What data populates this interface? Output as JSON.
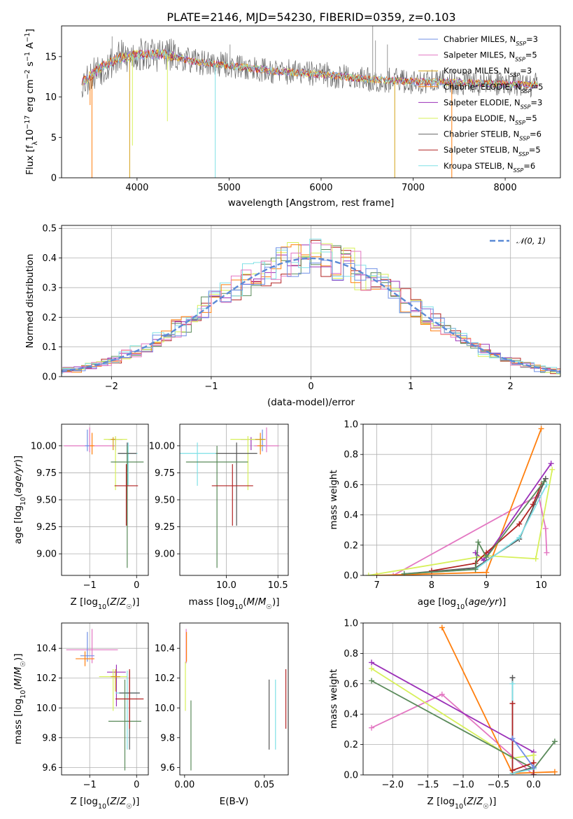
{
  "figure": {
    "title": "PLATE=2146, MJD=54230, FIBERID=0359, z=0.103"
  },
  "colors": {
    "palette": [
      "#6f8fe6",
      "#e377c2",
      "#d4a017",
      "#ff7f0e",
      "#9b30b8",
      "#d7f05a",
      "#555555",
      "#b22222",
      "#7fe0e6",
      "#5a8a5a"
    ]
  },
  "chart_data": [
    {
      "id": "spectrum",
      "type": "line",
      "xlabel": "wavelength [Angstrom, rest frame]",
      "ylabel": "Flux [f_λ 10^-17 erg cm^-2 s^-1 A^-1]",
      "xlim": [
        3180,
        8600
      ],
      "ylim": [
        0,
        18.8
      ],
      "xticks": [
        4000,
        5000,
        6000,
        7000,
        8000
      ],
      "yticks": [
        0,
        5,
        10,
        15
      ],
      "grid": false,
      "legend_position": "top-right",
      "series": [
        {
          "name": "Chabrier MILES, N_SSP=3"
        },
        {
          "name": "Salpeter MILES, N_SSP=5"
        },
        {
          "name": "Kroupa MILES, N_SSP=3"
        },
        {
          "name": "Chabrier ELODIE, N_SSP=5"
        },
        {
          "name": "Salpeter ELODIE, N_SSP=3"
        },
        {
          "name": "Kroupa ELODIE, N_SSP=5"
        },
        {
          "name": "Chabrier STELIB, N_SSP=6"
        },
        {
          "name": "Salpeter STELIB, N_SSP=5"
        },
        {
          "name": "Kroupa STELIB, N_SSP=6"
        }
      ],
      "profile": {
        "x": [
          3400,
          3600,
          3800,
          4000,
          4300,
          4600,
          5000,
          5500,
          6000,
          6500,
          7000,
          7500,
          8000,
          8350
        ],
        "y": [
          11.8,
          13.6,
          14.8,
          15.2,
          15.3,
          14.4,
          13.9,
          13.2,
          12.8,
          12.2,
          11.9,
          11.8,
          11.6,
          11.5
        ]
      }
    },
    {
      "id": "residuals",
      "type": "histogram",
      "xlabel": "(data-model)/error",
      "ylabel": "Normed distribution",
      "xlim": [
        -2.5,
        2.5
      ],
      "ylim": [
        0,
        0.51
      ],
      "xticks": [
        -2,
        -1,
        0,
        1,
        2
      ],
      "yticks": [
        0.0,
        0.1,
        0.2,
        0.3,
        0.4,
        0.5
      ],
      "grid": true,
      "legend": [
        {
          "name": "𝒩(0, 1)",
          "style": "dashed"
        }
      ]
    },
    {
      "id": "age_vs_Z",
      "type": "errorbar",
      "xlabel": "Z [log10(Z/Z☉)]",
      "ylabel": "age [log10(age/yr)]",
      "xlim": [
        -1.6,
        0.25
      ],
      "ylim": [
        8.8,
        10.2
      ],
      "xticks": [
        -1,
        0
      ],
      "yticks": [
        9.0,
        9.25,
        9.5,
        9.75,
        10.0
      ],
      "grid": true,
      "points": [
        {
          "x": -1.0,
          "y": 10.0,
          "xerr": 0.55,
          "yerr": [
            0.06,
            0.17
          ],
          "c": 1
        },
        {
          "x": -1.05,
          "y": 10.0,
          "xerr": 0.05,
          "yerr": [
            0.05,
            0.15
          ],
          "c": 0
        },
        {
          "x": -0.95,
          "y": 10.0,
          "xerr": 0.05,
          "yerr": [
            0.08,
            0.12
          ],
          "c": 3
        },
        {
          "x": -0.45,
          "y": 10.06,
          "xerr": 0.15,
          "yerr": [
            0.1,
            0.02
          ],
          "c": 4
        },
        {
          "x": -0.45,
          "y": 10.06,
          "xerr": 0.25,
          "yerr": [
            0.47,
            0.03
          ],
          "c": 5
        },
        {
          "x": -0.5,
          "y": 10.06,
          "xerr": 0.05,
          "yerr": [
            0.1,
            0.02
          ],
          "c": 2
        },
        {
          "x": -0.18,
          "y": 9.93,
          "xerr": 0.2,
          "yerr": [
            0.3,
            0.1
          ],
          "c": 8
        },
        {
          "x": -0.2,
          "y": 9.93,
          "xerr": 0.2,
          "yerr": [
            0.67,
            0.1
          ],
          "c": 6
        },
        {
          "x": -0.2,
          "y": 9.85,
          "xerr": 0.35,
          "yerr": [
            0.98,
            0.15
          ],
          "c": 9
        },
        {
          "x": -0.22,
          "y": 9.63,
          "xerr": 0.25,
          "yerr": [
            0.37,
            0.2
          ],
          "c": 7
        }
      ]
    },
    {
      "id": "age_vs_mass",
      "type": "errorbar",
      "xlabel": "mass [log10(M/M☉)]",
      "ylabel": "",
      "xlim": [
        9.55,
        10.6
      ],
      "ylim": [
        8.8,
        10.2
      ],
      "xticks": [
        10.0,
        10.5
      ],
      "yticks": [
        9.0,
        9.25,
        9.5,
        9.75,
        10.0
      ],
      "grid": true,
      "points": [
        {
          "x": 10.39,
          "y": 10.0,
          "xerr": 0.12,
          "yerr": [
            0.06,
            0.17
          ],
          "c": 1
        },
        {
          "x": 10.35,
          "y": 10.0,
          "xerr": 0.03,
          "yerr": [
            0.05,
            0.15
          ],
          "c": 0
        },
        {
          "x": 10.33,
          "y": 10.0,
          "xerr": 0.03,
          "yerr": [
            0.08,
            0.12
          ],
          "c": 3
        },
        {
          "x": 10.24,
          "y": 10.06,
          "xerr": 0.1,
          "yerr": [
            0.1,
            0.02
          ],
          "c": 4
        },
        {
          "x": 10.21,
          "y": 10.06,
          "xerr": 0.17,
          "yerr": [
            0.47,
            0.03
          ],
          "c": 5
        },
        {
          "x": 10.33,
          "y": 10.06,
          "xerr": 0.05,
          "yerr": [
            0.1,
            0.02
          ],
          "c": 2
        },
        {
          "x": 9.72,
          "y": 9.93,
          "xerr": 0.2,
          "yerr": [
            0.3,
            0.1
          ],
          "c": 8
        },
        {
          "x": 10.1,
          "y": 9.93,
          "xerr": 0.2,
          "yerr": [
            0.67,
            0.1
          ],
          "c": 6
        },
        {
          "x": 9.91,
          "y": 9.85,
          "xerr": 0.3,
          "yerr": [
            0.98,
            0.15
          ],
          "c": 9
        },
        {
          "x": 10.06,
          "y": 9.63,
          "xerr": 0.2,
          "yerr": [
            0.37,
            0.2
          ],
          "c": 7
        }
      ]
    },
    {
      "id": "weight_vs_age",
      "type": "line",
      "xlabel": "age [log10(age/yr)]",
      "ylabel": "mass weight",
      "xlim": [
        6.75,
        10.35
      ],
      "ylim": [
        0,
        1.0
      ],
      "xticks": [
        7,
        8,
        9,
        10
      ],
      "yticks": [
        0.0,
        0.2,
        0.4,
        0.6,
        0.8,
        1.0
      ],
      "grid": true,
      "series": [
        {
          "c": 1,
          "x": [
            7.3,
            9.95,
            10.08,
            10.1
          ],
          "y": [
            0.0,
            0.53,
            0.31,
            0.15
          ]
        },
        {
          "c": 3,
          "x": [
            7.0,
            9.0,
            10.0
          ],
          "y": [
            0.0,
            0.02,
            0.97
          ]
        },
        {
          "c": 4,
          "x": [
            8.8,
            8.95,
            10.18
          ],
          "y": [
            0.15,
            0.1,
            0.74
          ]
        },
        {
          "c": 5,
          "x": [
            6.85,
            9.0,
            9.9,
            10.2
          ],
          "y": [
            0.0,
            0.13,
            0.11,
            0.7
          ]
        },
        {
          "c": 7,
          "x": [
            8.0,
            8.8,
            9.0,
            9.6,
            9.85,
            10.0
          ],
          "y": [
            0.03,
            0.08,
            0.15,
            0.34,
            0.47,
            0.6
          ]
        },
        {
          "c": 6,
          "x": [
            7.5,
            8.8,
            9.6,
            10.08
          ],
          "y": [
            0.01,
            0.05,
            0.24,
            0.64
          ]
        },
        {
          "c": 8,
          "x": [
            7.5,
            8.8,
            9.6,
            10.1
          ],
          "y": [
            0.01,
            0.04,
            0.25,
            0.6
          ]
        },
        {
          "c": 9,
          "x": [
            7.5,
            8.8,
            8.85,
            9.0,
            10.05
          ],
          "y": [
            0.01,
            0.04,
            0.22,
            0.12,
            0.62
          ]
        }
      ]
    },
    {
      "id": "mass_vs_Z",
      "type": "errorbar",
      "xlabel": "Z [log10(Z/Z☉)]",
      "ylabel": "mass [log10(M/M☉)]",
      "xlim": [
        -1.6,
        0.25
      ],
      "ylim": [
        9.55,
        10.57
      ],
      "xticks": [
        -1,
        0
      ],
      "yticks": [
        9.6,
        9.8,
        10.0,
        10.2,
        10.4
      ],
      "grid": true,
      "points": [
        {
          "x": -0.95,
          "y": 10.39,
          "xerr": 0.55,
          "yerr": [
            0.09,
            0.14
          ],
          "c": 1
        },
        {
          "x": -1.05,
          "y": 10.35,
          "xerr": 0.15,
          "yerr": [
            0.04,
            0.16
          ],
          "c": 0
        },
        {
          "x": -1.1,
          "y": 10.33,
          "xerr": 0.2,
          "yerr": [
            0.05,
            0.05
          ],
          "c": 3
        },
        {
          "x": -0.43,
          "y": 10.24,
          "xerr": 0.2,
          "yerr": [
            0.23,
            0.05
          ],
          "c": 4
        },
        {
          "x": -0.5,
          "y": 10.21,
          "xerr": 0.3,
          "yerr": [
            0.23,
            0.05
          ],
          "c": 5
        },
        {
          "x": -0.45,
          "y": 10.21,
          "xerr": 0.1,
          "yerr": [
            0.1,
            0.05
          ],
          "c": 2
        },
        {
          "x": -0.2,
          "y": 10.1,
          "xerr": 0.25,
          "yerr": [
            0.38,
            0.15
          ],
          "c": 8
        },
        {
          "x": -0.15,
          "y": 10.1,
          "xerr": 0.22,
          "yerr": [
            0.38,
            0.15
          ],
          "c": 6
        },
        {
          "x": -0.25,
          "y": 9.91,
          "xerr": 0.35,
          "yerr": [
            0.33,
            0.28
          ],
          "c": 9
        },
        {
          "x": -0.15,
          "y": 10.06,
          "xerr": 0.3,
          "yerr": [
            0.2,
            0.2
          ],
          "c": 7
        }
      ]
    },
    {
      "id": "mass_vs_ebv",
      "type": "errorbar",
      "xlabel": "E(B-V)",
      "ylabel": "",
      "xlim": [
        -0.003,
        0.065
      ],
      "ylim": [
        9.55,
        10.57
      ],
      "xticks": [
        0.0,
        0.05
      ],
      "yticks": [
        9.6,
        9.8,
        10.0,
        10.2,
        10.4
      ],
      "grid": false,
      "points": [
        {
          "x": 0.001,
          "y": 10.39,
          "xerr": 0.0,
          "yerr": [
            0.09,
            0.14
          ],
          "c": 1
        },
        {
          "x": 0.0012,
          "y": 10.35,
          "xerr": 0.0,
          "yerr": [
            0.04,
            0.16
          ],
          "c": 3
        },
        {
          "x": 0.0005,
          "y": 10.21,
          "xerr": 0.0,
          "yerr": [
            0.23,
            0.1
          ],
          "c": 5
        },
        {
          "x": 0.004,
          "y": 9.95,
          "xerr": 0.0,
          "yerr": [
            0.37,
            0.1
          ],
          "c": 9
        },
        {
          "x": 0.053,
          "y": 9.95,
          "xerr": 0.0,
          "yerr": [
            0.23,
            0.24
          ],
          "c": 6
        },
        {
          "x": 0.057,
          "y": 9.93,
          "xerr": 0.0,
          "yerr": [
            0.21,
            0.26
          ],
          "c": 8
        },
        {
          "x": 0.0635,
          "y": 10.06,
          "xerr": 0.0,
          "yerr": [
            0.2,
            0.2
          ],
          "c": 7
        }
      ]
    },
    {
      "id": "weight_vs_Z",
      "type": "line",
      "xlabel": "Z [log10(Z/Z☉)]",
      "ylabel": "mass weight",
      "xlim": [
        -2.42,
        0.38
      ],
      "ylim": [
        0,
        1.0
      ],
      "xticks": [
        -2.0,
        -1.5,
        -1.0,
        -0.5,
        0.0
      ],
      "yticks": [
        0.0,
        0.2,
        0.4,
        0.6,
        0.8,
        1.0
      ],
      "grid": true,
      "series": [
        {
          "c": 1,
          "x": [
            -2.3,
            -1.3,
            0.0
          ],
          "y": [
            0.31,
            0.53,
            0.0
          ]
        },
        {
          "c": 3,
          "x": [
            -1.3,
            -0.3,
            0.3
          ],
          "y": [
            0.97,
            0.01,
            0.02
          ]
        },
        {
          "c": 4,
          "x": [
            -2.3,
            0.0,
            0.0
          ],
          "y": [
            0.74,
            0.15,
            0.0
          ]
        },
        {
          "c": 5,
          "x": [
            -2.3,
            -0.3,
            0.0,
            0.0
          ],
          "y": [
            0.7,
            0.11,
            0.13,
            0.0
          ]
        },
        {
          "c": 9,
          "x": [
            -2.3,
            0.0,
            0.3
          ],
          "y": [
            0.62,
            0.04,
            0.22
          ]
        },
        {
          "c": 6,
          "x": [
            -0.3,
            -0.3,
            0.0,
            0.0
          ],
          "y": [
            0.64,
            0.01,
            0.05,
            0.0
          ]
        },
        {
          "c": 8,
          "x": [
            -0.3,
            -0.3,
            0.0,
            0.0
          ],
          "y": [
            0.6,
            0.01,
            0.04,
            0.0
          ]
        },
        {
          "c": 7,
          "x": [
            -0.3,
            -0.3,
            0.0,
            0.0
          ],
          "y": [
            0.47,
            0.03,
            0.08,
            0.0
          ]
        },
        {
          "c": 0,
          "x": [
            -0.3,
            0.0
          ],
          "y": [
            0.24,
            0.05
          ]
        }
      ]
    }
  ]
}
